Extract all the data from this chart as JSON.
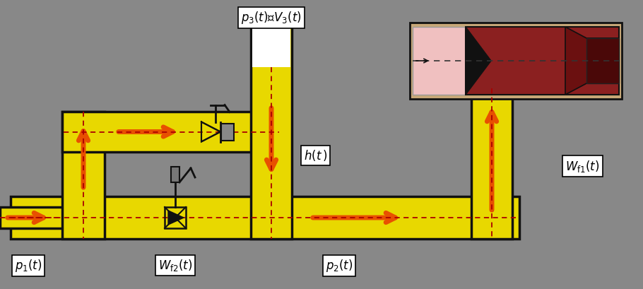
{
  "bg_color": "#888888",
  "pipe_color": "#E8D800",
  "pipe_edge_color": "#111111",
  "arrow_color": "#E85000",
  "fig_width": 9.1,
  "fig_height": 4.09,
  "labels": {
    "p1": "$p_1(t)$",
    "Wf2": "$W_{\\mathrm{f2}}(t)$",
    "p2": "$p_2(t)$",
    "p3V3": "$p_3(t)$、$V_3(t)$",
    "ht": "$h(t\\,)$",
    "Wf1": "$W_{\\mathrm{f1}}(t)$"
  }
}
